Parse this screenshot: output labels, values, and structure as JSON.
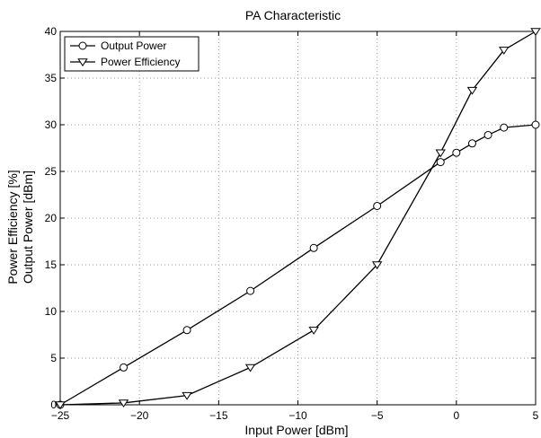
{
  "chart_data": {
    "type": "line",
    "title": "PA Characteristic",
    "xlabel": "Input Power [dBm]",
    "ylabel_lines": [
      "Power Efficiency [%]",
      "Output Power [dBm]"
    ],
    "xlim": [
      -25,
      5
    ],
    "ylim": [
      0,
      40
    ],
    "xticks": [
      -25,
      -20,
      -15,
      -10,
      -5,
      0,
      5
    ],
    "yticks": [
      0,
      5,
      10,
      15,
      20,
      25,
      30,
      35,
      40
    ],
    "xtick_labels": [
      "−25",
      "−20",
      "−15",
      "−10",
      "−5",
      "0",
      "5"
    ],
    "ytick_labels": [
      "0",
      "5",
      "10",
      "15",
      "20",
      "25",
      "30",
      "35",
      "40"
    ],
    "grid": true,
    "legend_position": "top-left",
    "series": [
      {
        "name": "Output Power",
        "marker": "circle",
        "x": [
          -25,
          -21,
          -17,
          -13,
          -9,
          -5,
          -1,
          0,
          1,
          2,
          3,
          5
        ],
        "y": [
          0,
          4,
          8,
          12.2,
          16.8,
          21.3,
          26,
          27,
          28,
          28.9,
          29.7,
          30
        ]
      },
      {
        "name": "Power Efficiency",
        "marker": "triangle-down",
        "x": [
          -25,
          -21,
          -17,
          -13,
          -9,
          -5,
          -1,
          1,
          3,
          5
        ],
        "y": [
          0,
          0.2,
          1,
          4,
          8,
          15,
          27,
          33.7,
          38,
          40
        ]
      }
    ]
  }
}
